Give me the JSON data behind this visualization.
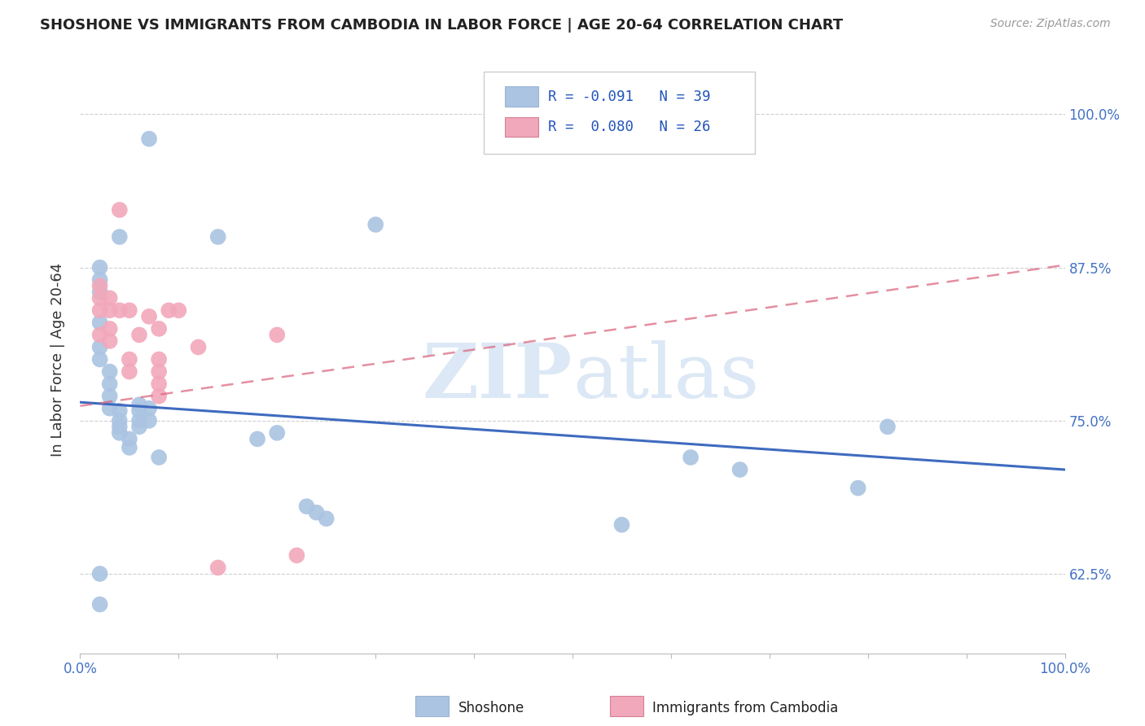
{
  "title": "SHOSHONE VS IMMIGRANTS FROM CAMBODIA IN LABOR FORCE | AGE 20-64 CORRELATION CHART",
  "source": "Source: ZipAtlas.com",
  "ylabel": "In Labor Force | Age 20-64",
  "xlim": [
    0.0,
    1.0
  ],
  "ylim": [
    0.56,
    1.04
  ],
  "y_ticks": [
    0.625,
    0.75,
    0.875,
    1.0
  ],
  "x_ticks": [
    0.0,
    0.1,
    0.2,
    0.3,
    0.4,
    0.5,
    0.6,
    0.7,
    0.8,
    0.9,
    1.0
  ],
  "shoshone_color": "#aac4e2",
  "cambodia_color": "#f2a8bb",
  "shoshone_line_color": "#3f6bbf",
  "cambodia_line_color": "#d9607a",
  "legend_R1": "-0.091",
  "legend_N1": "39",
  "legend_R2": "0.080",
  "legend_N2": "26",
  "watermark": "ZIPatlas",
  "shoshone_x": [
    0.07,
    0.04,
    0.14,
    0.3,
    0.02,
    0.02,
    0.02,
    0.02,
    0.02,
    0.02,
    0.03,
    0.03,
    0.03,
    0.03,
    0.04,
    0.04,
    0.04,
    0.04,
    0.05,
    0.05,
    0.06,
    0.06,
    0.06,
    0.06,
    0.07,
    0.07,
    0.08,
    0.18,
    0.2,
    0.23,
    0.24,
    0.25,
    0.55,
    0.62,
    0.67,
    0.79,
    0.82,
    0.02,
    0.02
  ],
  "shoshone_y": [
    0.98,
    0.9,
    0.9,
    0.91,
    0.875,
    0.865,
    0.855,
    0.83,
    0.81,
    0.8,
    0.79,
    0.78,
    0.77,
    0.76,
    0.758,
    0.75,
    0.745,
    0.74,
    0.735,
    0.728,
    0.763,
    0.758,
    0.75,
    0.745,
    0.76,
    0.75,
    0.72,
    0.735,
    0.74,
    0.68,
    0.675,
    0.67,
    0.665,
    0.72,
    0.71,
    0.695,
    0.745,
    0.625,
    0.6
  ],
  "cambodia_x": [
    0.02,
    0.02,
    0.02,
    0.02,
    0.03,
    0.03,
    0.03,
    0.03,
    0.04,
    0.04,
    0.05,
    0.05,
    0.05,
    0.06,
    0.07,
    0.08,
    0.09,
    0.1,
    0.12,
    0.14,
    0.2,
    0.22,
    0.08,
    0.08,
    0.08,
    0.08
  ],
  "cambodia_y": [
    0.86,
    0.85,
    0.84,
    0.82,
    0.85,
    0.84,
    0.825,
    0.815,
    0.922,
    0.84,
    0.84,
    0.8,
    0.79,
    0.82,
    0.835,
    0.825,
    0.84,
    0.84,
    0.81,
    0.63,
    0.82,
    0.64,
    0.8,
    0.79,
    0.78,
    0.77
  ]
}
